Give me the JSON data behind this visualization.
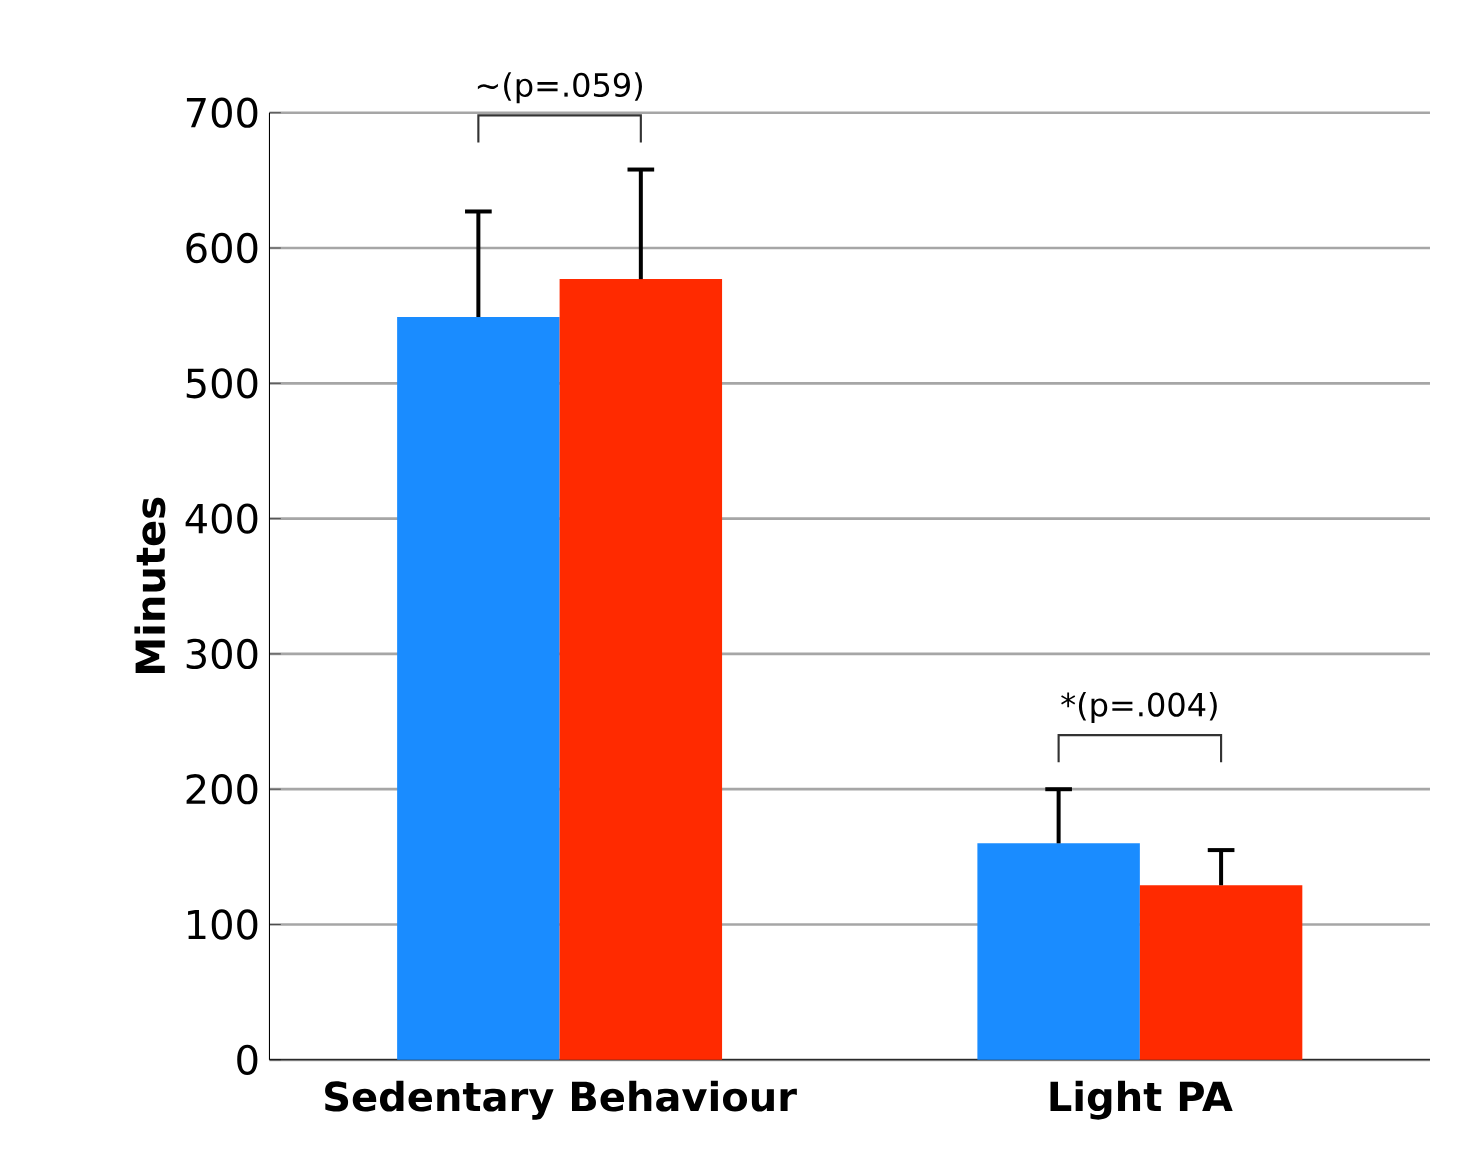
{
  "chart_data": {
    "type": "bar",
    "ylabel": "Minutes",
    "categories": [
      "Sedentary Behaviour",
      "Light PA"
    ],
    "series": [
      {
        "color": "#1a8cff",
        "values": [
          549,
          160
        ],
        "errors": [
          78,
          40
        ]
      },
      {
        "color": "#ff2a00",
        "values": [
          577,
          129
        ],
        "errors": [
          81,
          26
        ]
      }
    ],
    "ylim": [
      0,
      700
    ],
    "yticks": [
      0,
      100,
      200,
      300,
      400,
      500,
      600,
      700
    ],
    "grid": "y",
    "annotations": [
      "~(p=.059)",
      "*(p=.004)"
    ]
  }
}
